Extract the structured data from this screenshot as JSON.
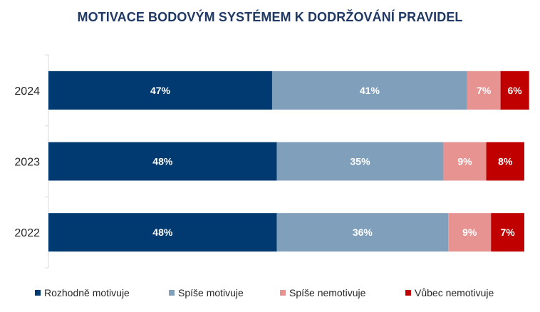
{
  "chart_data": {
    "type": "bar",
    "orientation": "horizontal",
    "stacked": true,
    "title": "MOTIVACE BODOVÝM SYSTÉMEM K DODRŽOVÁNÍ PRAVIDEL",
    "categories": [
      "2024",
      "2023",
      "2022"
    ],
    "series": [
      {
        "name": "Rozhodně motivuje",
        "color": "#003a70",
        "values": [
          47,
          48,
          48
        ],
        "labels": [
          "47%",
          "48%",
          "48%"
        ]
      },
      {
        "name": "Spíše motivuje",
        "color": "#7f9fbb",
        "values": [
          41,
          35,
          36
        ],
        "labels": [
          "41%",
          "35%",
          "36%"
        ]
      },
      {
        "name": "Spíše nemotivuje",
        "color": "#e79391",
        "values": [
          7,
          9,
          9
        ],
        "labels": [
          "7%",
          "9%",
          "9%"
        ]
      },
      {
        "name": "Vůbec nemotivuje",
        "color": "#c00000",
        "values": [
          6,
          8,
          7
        ],
        "labels": [
          "6%",
          "8%",
          "7%"
        ]
      }
    ],
    "xlim": [
      0,
      100
    ],
    "grid": false,
    "legend_position": "bottom"
  }
}
